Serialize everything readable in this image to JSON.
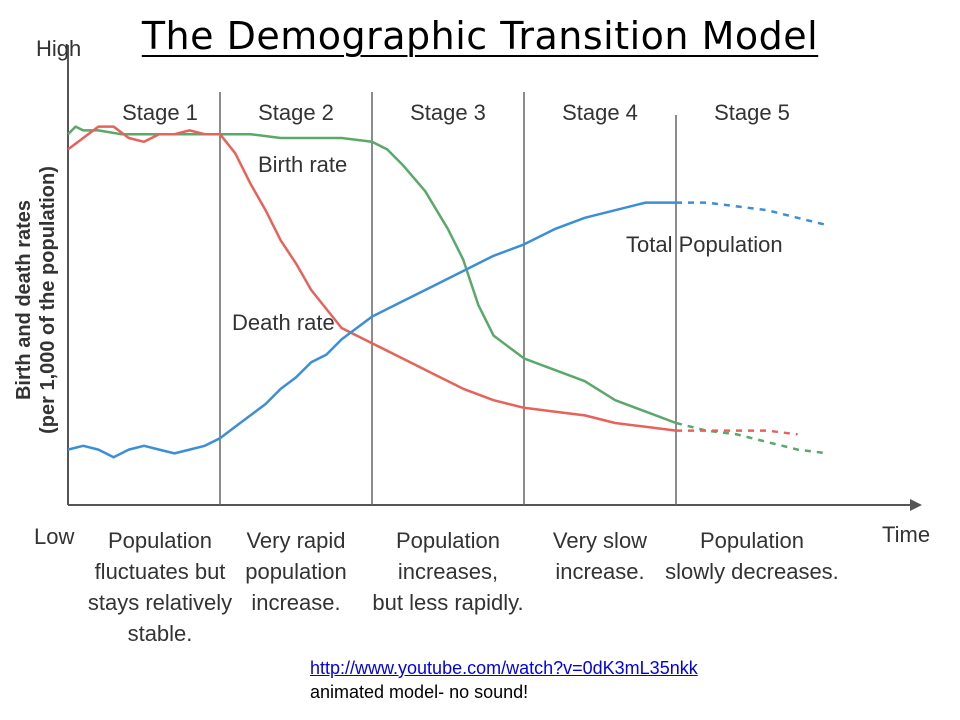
{
  "title": "The Demographic Transition Model",
  "chart_data": {
    "type": "line",
    "y_axis_label_line1": "Birth and death rates",
    "y_axis_label_line2": "(per 1,000 of the population)",
    "y_high_label": "High",
    "y_low_label": "Low",
    "x_axis_label": "Time",
    "stages": [
      {
        "label": "Stage 1",
        "description": [
          "Population",
          "fluctuates but",
          "stays relatively",
          "stable."
        ]
      },
      {
        "label": "Stage 2",
        "description": [
          "Very rapid",
          "population",
          "increase."
        ]
      },
      {
        "label": "Stage 3",
        "description": [
          "Population",
          "increases,",
          "but less rapidly."
        ]
      },
      {
        "label": "Stage 4",
        "description": [
          "Very slow",
          "increase."
        ]
      },
      {
        "label": "Stage 5",
        "description": [
          "Population",
          "slowly decreases."
        ]
      }
    ],
    "xlim": [
      0,
      5
    ],
    "ylim": [
      0,
      100
    ],
    "series": [
      {
        "name": "Birth rate",
        "color": "#5aa86a",
        "solid": [
          [
            0.0,
            91
          ],
          [
            0.05,
            93
          ],
          [
            0.1,
            92
          ],
          [
            0.2,
            92
          ],
          [
            0.35,
            91
          ],
          [
            0.5,
            91
          ],
          [
            0.7,
            91
          ],
          [
            0.9,
            91
          ],
          [
            1.0,
            91
          ],
          [
            1.2,
            91
          ],
          [
            1.4,
            90
          ],
          [
            1.6,
            90
          ],
          [
            1.8,
            90
          ],
          [
            2.0,
            89
          ],
          [
            2.1,
            87
          ],
          [
            2.2,
            83
          ],
          [
            2.35,
            76
          ],
          [
            2.5,
            66
          ],
          [
            2.6,
            58
          ],
          [
            2.7,
            46
          ],
          [
            2.8,
            38
          ],
          [
            2.9,
            35
          ],
          [
            3.0,
            32
          ],
          [
            3.2,
            29
          ],
          [
            3.4,
            26
          ],
          [
            3.6,
            21
          ],
          [
            3.8,
            18
          ],
          [
            4.0,
            15
          ]
        ],
        "dashed": [
          [
            4.0,
            15
          ],
          [
            4.2,
            13
          ],
          [
            4.4,
            12
          ],
          [
            4.6,
            10
          ],
          [
            4.8,
            8
          ],
          [
            5.0,
            7
          ]
        ]
      },
      {
        "name": "Death rate",
        "color": "#e8625a",
        "solid": [
          [
            0.0,
            87
          ],
          [
            0.1,
            90
          ],
          [
            0.2,
            93
          ],
          [
            0.3,
            93
          ],
          [
            0.4,
            90
          ],
          [
            0.5,
            89
          ],
          [
            0.6,
            91
          ],
          [
            0.7,
            91
          ],
          [
            0.8,
            92
          ],
          [
            0.9,
            91
          ],
          [
            1.0,
            91
          ],
          [
            1.1,
            86
          ],
          [
            1.2,
            78
          ],
          [
            1.3,
            71
          ],
          [
            1.4,
            63
          ],
          [
            1.5,
            57
          ],
          [
            1.6,
            50
          ],
          [
            1.7,
            45
          ],
          [
            1.8,
            40
          ],
          [
            1.9,
            38
          ],
          [
            2.0,
            36
          ],
          [
            2.2,
            32
          ],
          [
            2.4,
            28
          ],
          [
            2.6,
            24
          ],
          [
            2.8,
            21
          ],
          [
            3.0,
            19
          ],
          [
            3.2,
            18
          ],
          [
            3.4,
            17
          ],
          [
            3.6,
            15
          ],
          [
            3.8,
            14
          ],
          [
            4.0,
            13
          ]
        ],
        "dashed": [
          [
            4.0,
            13
          ],
          [
            4.2,
            13
          ],
          [
            4.4,
            13
          ],
          [
            4.6,
            13
          ],
          [
            4.8,
            12
          ]
        ]
      },
      {
        "name": "Total Population",
        "color": "#3a8fd8",
        "solid": [
          [
            0.0,
            8
          ],
          [
            0.1,
            9
          ],
          [
            0.2,
            8
          ],
          [
            0.3,
            6
          ],
          [
            0.4,
            8
          ],
          [
            0.5,
            9
          ],
          [
            0.6,
            8
          ],
          [
            0.7,
            7
          ],
          [
            0.8,
            8
          ],
          [
            0.9,
            9
          ],
          [
            1.0,
            11
          ],
          [
            1.1,
            14
          ],
          [
            1.2,
            17
          ],
          [
            1.3,
            20
          ],
          [
            1.4,
            24
          ],
          [
            1.5,
            27
          ],
          [
            1.6,
            31
          ],
          [
            1.7,
            33
          ],
          [
            1.8,
            37
          ],
          [
            1.9,
            40
          ],
          [
            2.0,
            43
          ],
          [
            2.2,
            47
          ],
          [
            2.4,
            51
          ],
          [
            2.6,
            55
          ],
          [
            2.8,
            59
          ],
          [
            3.0,
            62
          ],
          [
            3.2,
            66
          ],
          [
            3.4,
            69
          ],
          [
            3.6,
            71
          ],
          [
            3.8,
            73
          ],
          [
            4.0,
            73
          ]
        ],
        "dashed": [
          [
            4.0,
            73
          ],
          [
            4.2,
            73
          ],
          [
            4.4,
            72
          ],
          [
            4.6,
            71
          ],
          [
            4.8,
            69
          ],
          [
            5.0,
            67
          ]
        ]
      }
    ]
  },
  "link": {
    "url": "http://www.youtube.com/watch?v=0dK3mL35nkk",
    "caption": "animated model- no sound!"
  }
}
